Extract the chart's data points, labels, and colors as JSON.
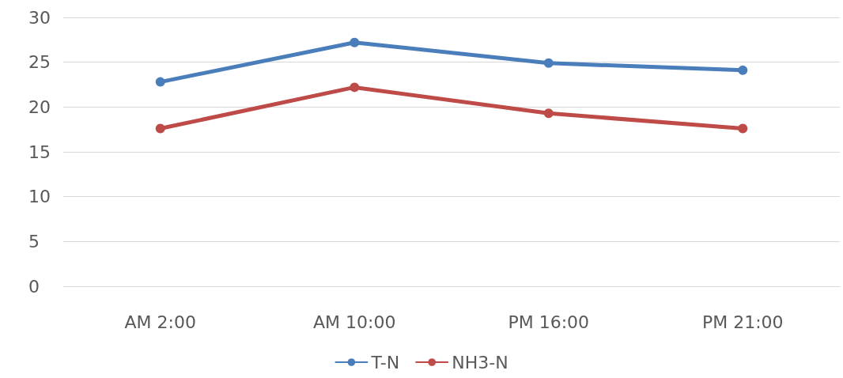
{
  "chart_data": {
    "type": "line",
    "categories": [
      "AM 2:00",
      "AM 10:00",
      "PM 16:00",
      "PM 21:00"
    ],
    "series": [
      {
        "name": "T-N",
        "color": "#4a7ebb",
        "values": [
          22.8,
          27.2,
          24.9,
          24.1
        ]
      },
      {
        "name": "NH3-N",
        "color": "#be4b48",
        "values": [
          17.6,
          22.2,
          19.3,
          17.6
        ]
      }
    ],
    "ylim": [
      0,
      30
    ],
    "yticks": [
      0,
      5,
      10,
      15,
      20,
      25,
      30
    ],
    "grid": "y",
    "legend": "bottom",
    "marker": "circle",
    "line_style": "solid"
  }
}
